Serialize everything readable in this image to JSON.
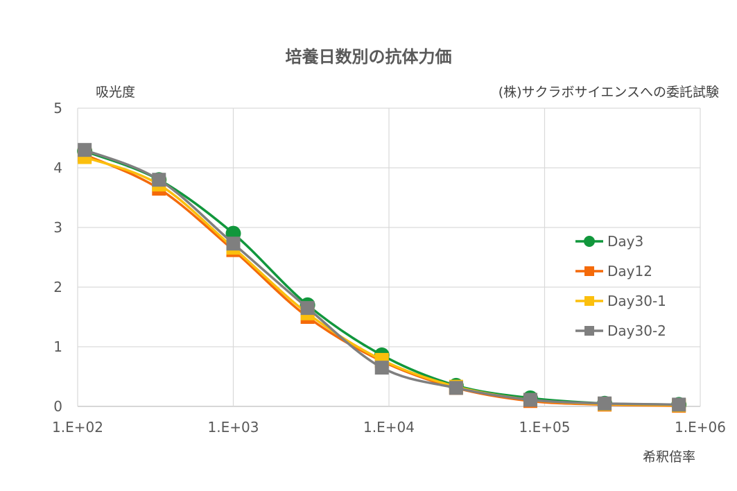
{
  "chart_data": {
    "type": "line",
    "title": "培養日数別の抗体力価",
    "ylabel": "吸光度",
    "xlabel": "希釈倍率",
    "note": "(株)サクラボサイエンスへの委託試験",
    "x_scale": "log",
    "xlim": [
      100,
      1000000
    ],
    "ylim": [
      0,
      5
    ],
    "x_ticks": [
      100,
      1000,
      10000,
      100000,
      1000000
    ],
    "x_tick_labels": [
      "1.E+02",
      "1.E+03",
      "1.E+04",
      "1.E+05",
      "1.E+06"
    ],
    "y_ticks": [
      0,
      1,
      2,
      3,
      4,
      5
    ],
    "y_tick_labels": [
      "0",
      "1",
      "2",
      "3",
      "4",
      "5"
    ],
    "grid": true,
    "legend_position": "right",
    "x": [
      111,
      333,
      1000,
      3000,
      9000,
      27000,
      81000,
      243000,
      729000
    ],
    "series": [
      {
        "name": "Day3",
        "marker": "circle",
        "color": "#11973c",
        "values": [
          4.28,
          3.8,
          2.9,
          1.7,
          0.86,
          0.35,
          0.14,
          0.05,
          0.03
        ]
      },
      {
        "name": "Day12",
        "marker": "square",
        "color": "#f46a0a",
        "values": [
          4.22,
          3.65,
          2.62,
          1.5,
          0.76,
          0.31,
          0.09,
          0.03,
          0.01
        ]
      },
      {
        "name": "Day30-1",
        "marker": "square",
        "color": "#fbbf0d",
        "values": [
          4.18,
          3.72,
          2.66,
          1.56,
          0.78,
          0.33,
          0.11,
          0.04,
          0.02
        ]
      },
      {
        "name": "Day30-2",
        "marker": "square",
        "color": "#7f7f7f",
        "values": [
          4.3,
          3.8,
          2.73,
          1.65,
          0.65,
          0.31,
          0.11,
          0.05,
          0.03
        ]
      }
    ]
  }
}
